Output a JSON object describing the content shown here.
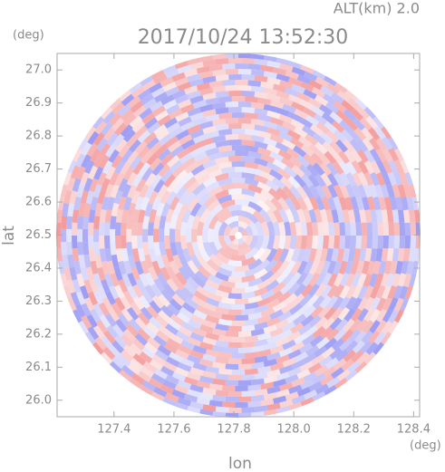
{
  "chart_data": {
    "type": "radar-ppi",
    "title": "2017/10/24 13:52:30",
    "altitude_label": "ALT(km) 2.0",
    "y_unit": "(deg)",
    "x_unit": "(deg)",
    "xlabel": "lon",
    "ylabel": "lat",
    "xlim": [
      127.21,
      128.42
    ],
    "ylim": [
      25.95,
      27.05
    ],
    "xticks": [
      127.4,
      127.6,
      127.8,
      {
        "value": 128.0,
        "label": "128.0"
      },
      128.2,
      128.4
    ],
    "yticks": [
      {
        "value": 26.0,
        "label": "26.0"
      },
      26.1,
      26.2,
      26.3,
      26.4,
      26.5,
      26.6,
      26.7,
      26.8,
      26.9,
      {
        "value": 27.0,
        "label": "27.0"
      }
    ]
  }
}
